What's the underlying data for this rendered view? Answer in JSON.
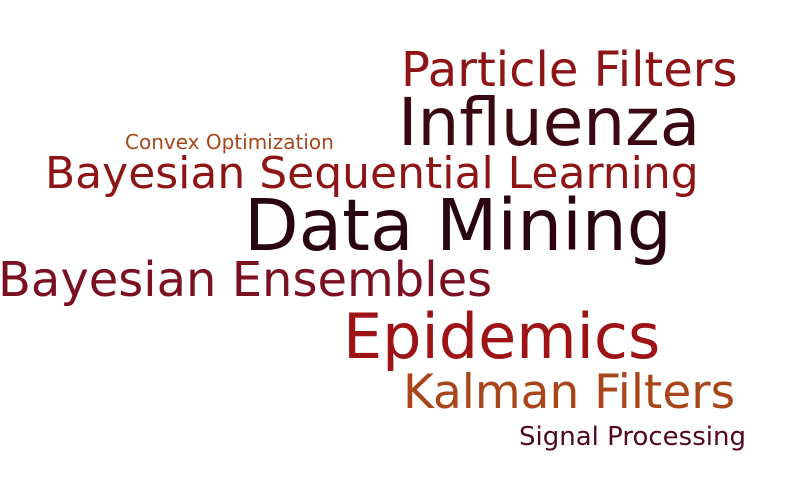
{
  "words": [
    {
      "key": "particle",
      "text": "Particle Filters",
      "color": "#8e1516"
    },
    {
      "key": "influenza",
      "text": "Influenza",
      "color": "#3a0713"
    },
    {
      "key": "convex",
      "text": "Convex Optimization",
      "color": "#a8461a"
    },
    {
      "key": "bayseq",
      "text": "Bayesian Sequential Learning",
      "color": "#8e1516"
    },
    {
      "key": "datamining",
      "text": "Data Mining",
      "color": "#2a0510"
    },
    {
      "key": "bayens",
      "text": "Bayesian Ensembles",
      "color": "#7a1020"
    },
    {
      "key": "epidemics",
      "text": "Epidemics",
      "color": "#9e1316"
    },
    {
      "key": "kalman",
      "text": "Kalman Filters",
      "color": "#a8461a"
    },
    {
      "key": "signal",
      "text": "Signal Processing",
      "color": "#52081c"
    }
  ]
}
